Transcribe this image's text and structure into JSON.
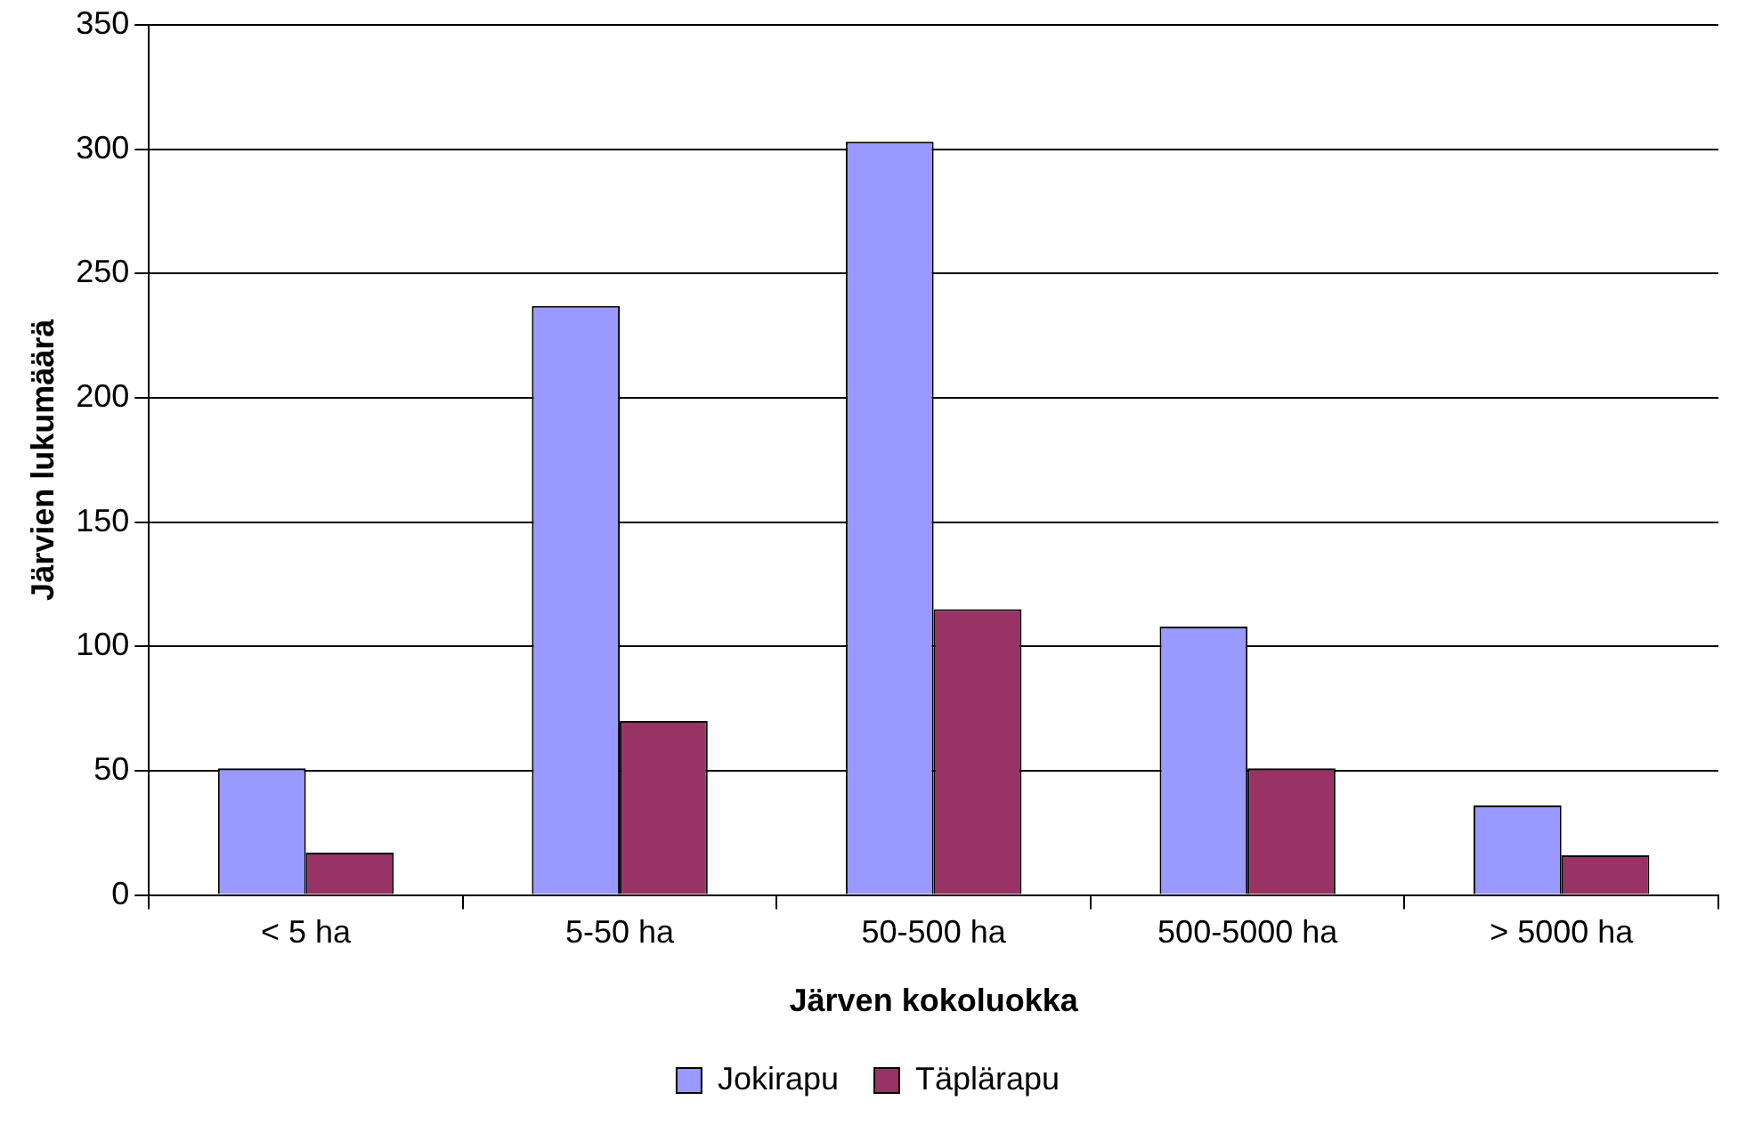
{
  "chart_data": {
    "type": "bar",
    "xlabel": "Järven kokoluokka",
    "ylabel": "Järvien lukumäärä",
    "categories": [
      "< 5 ha",
      "5-50 ha",
      "50-500 ha",
      "500-5000 ha",
      "> 5000 ha"
    ],
    "series": [
      {
        "name": "Jokirapu",
        "color": "#9999ff",
        "values": [
          51,
          237,
          303,
          108,
          36
        ]
      },
      {
        "name": "Täplärapu",
        "color": "#993366",
        "values": [
          17,
          70,
          115,
          51,
          16
        ]
      }
    ],
    "ylim": [
      0,
      350
    ],
    "yticks": [
      0,
      50,
      100,
      150,
      200,
      250,
      300,
      350
    ],
    "grid": "y",
    "legend": "bottom"
  }
}
